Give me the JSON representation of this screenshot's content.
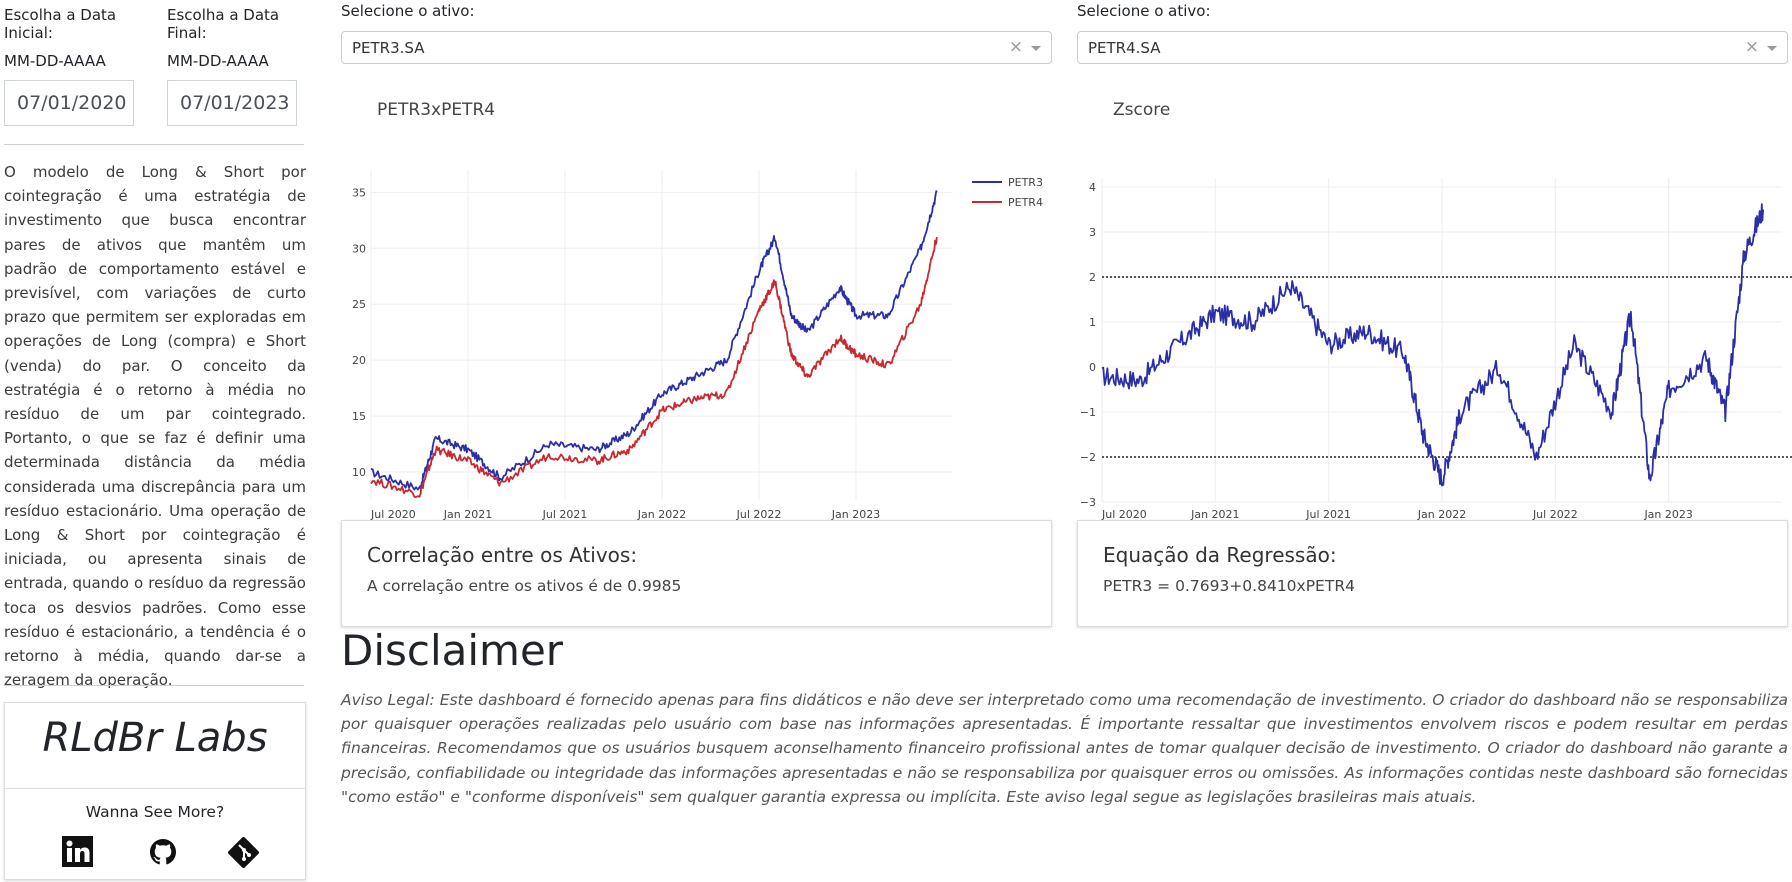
{
  "sidebar": {
    "start_label": "Escolha a Data Inicial:",
    "end_label": "Escolha a Data Final:",
    "date_format": "MM-DD-AAAA",
    "start_date": "07/01/2020",
    "end_date": "07/01/2023",
    "description": "O modelo de Long & Short por cointegração é uma estratégia de investimento que busca encontrar pares de ativos que mantêm um padrão de comportamento estável e previsível, com variações de curto prazo que permitem ser exploradas em operações de Long (compra) e Short (venda) do par. O conceito da estratégia é o retorno à média no resíduo de um par cointegrado. Portanto, o que se faz é definir uma determinada distância da média considerada uma discrepância para um resíduo estacionário. Uma operação de Long & Short por cointegração é iniciada, ou apresenta sinais de entrada, quando o resíduo da regressão toca os desvios padrões. Como esse resíduo é estacionário, a tendência é o retorno à média, quando dar-se a zeragem da operação.",
    "brand": "RLdBr Labs",
    "see_more": "Wanna See More?",
    "icons": [
      "linkedin-icon",
      "github-icon",
      "git-icon"
    ]
  },
  "selectors": [
    {
      "label": "Selecione o ativo:",
      "value": "PETR3.SA",
      "clear": "×"
    },
    {
      "label": "Selecione o ativo:",
      "value": "PETR4.SA",
      "clear": "×"
    }
  ],
  "colors": {
    "petr3": "#2a2fa8",
    "petr4": "#c8282e",
    "zscore": "#2a2fa8"
  },
  "chart_data": [
    {
      "type": "line",
      "title": "PETR3xPETR4",
      "x_ticks": [
        "Jul 2020",
        "Jan 2021",
        "Jul 2021",
        "Jan 2022",
        "Jul 2022",
        "Jan 2023"
      ],
      "y_ticks": [
        10,
        15,
        20,
        25,
        30,
        35
      ],
      "ylim": [
        7.5,
        37
      ],
      "legend": "top-right",
      "series": [
        {
          "name": "PETR3",
          "x": [
            "2020-07",
            "2020-10",
            "2020-11",
            "2021-01",
            "2021-03",
            "2021-06",
            "2021-09",
            "2021-11",
            "2022-01",
            "2022-03",
            "2022-05",
            "2022-07",
            "2022-08",
            "2022-09",
            "2022-10",
            "2022-12",
            "2023-01",
            "2023-03",
            "2023-05",
            "2023-06"
          ],
          "values": [
            10,
            8.5,
            13,
            12,
            9.5,
            12.5,
            12,
            13.5,
            17,
            18.5,
            20,
            28,
            31,
            24,
            22.5,
            26.5,
            24,
            24,
            30,
            35
          ]
        },
        {
          "name": "PETR4",
          "x": [
            "2020-07",
            "2020-10",
            "2020-11",
            "2021-01",
            "2021-03",
            "2021-06",
            "2021-09",
            "2021-11",
            "2022-01",
            "2022-03",
            "2022-05",
            "2022-07",
            "2022-08",
            "2022-09",
            "2022-10",
            "2022-12",
            "2023-01",
            "2023-03",
            "2023-05",
            "2023-06"
          ],
          "values": [
            9.3,
            8,
            12,
            11,
            9,
            11.5,
            11,
            12,
            15.5,
            16.5,
            17,
            24.5,
            27,
            20.5,
            18.5,
            22,
            20.5,
            19.5,
            25,
            31
          ]
        }
      ]
    },
    {
      "type": "line",
      "title": "Zscore",
      "x_ticks": [
        "Jul 2020",
        "Jan 2021",
        "Jul 2021",
        "Jan 2022",
        "Jul 2022",
        "Jan 2023"
      ],
      "y_ticks": [
        -3,
        -2,
        -1,
        0,
        1,
        2,
        3,
        4
      ],
      "ylim": [
        -3,
        4.2
      ],
      "hlines": [
        2,
        -2
      ],
      "series": [
        {
          "x": [
            "2020-07",
            "2020-09",
            "2020-11",
            "2021-01",
            "2021-03",
            "2021-05",
            "2021-07",
            "2021-09",
            "2021-11",
            "2021-12",
            "2022-01",
            "2022-02",
            "2022-04",
            "2022-06",
            "2022-08",
            "2022-10",
            "2022-11",
            "2022-12",
            "2023-01",
            "2023-03",
            "2023-04",
            "2023-05",
            "2023-06"
          ],
          "values": [
            -0.2,
            -0.3,
            0.5,
            1.2,
            1.0,
            1.8,
            0.5,
            0.8,
            0.3,
            -1.5,
            -2.5,
            -1.0,
            0.0,
            -2.0,
            0.5,
            -1.0,
            1.2,
            -2.5,
            -0.5,
            0.2,
            -1.0,
            2.5,
            3.5
          ]
        }
      ]
    }
  ],
  "cards": [
    {
      "title": "Correlação entre os Ativos:",
      "text": "A correlação entre os ativos é de 0.9985"
    },
    {
      "title": "Equação da Regressão:",
      "text": "PETR3 = 0.7693+0.8410xPETR4"
    }
  ],
  "disclaimer": {
    "heading": "Disclaimer",
    "text": "Aviso Legal: Este dashboard é fornecido apenas para fins didáticos e não deve ser interpretado como uma recomendação de investimento. O criador do dashboard não se responsabiliza por quaisquer operações realizadas pelo usuário com base nas informações apresentadas. É importante ressaltar que investimentos envolvem riscos e podem resultar em perdas financeiras. Recomendamos que os usuários busquem aconselhamento financeiro profissional antes de tomar qualquer decisão de investimento. O criador do dashboard não garante a precisão, confiabilidade ou integridade das informações apresentadas e não se responsabiliza por quaisquer erros ou omissões. As informações contidas neste dashboard são fornecidas \"como estão\" e \"conforme disponíveis\" sem qualquer garantia expressa ou implícita. Este aviso legal segue as legislações brasileiras mais atuais."
  }
}
